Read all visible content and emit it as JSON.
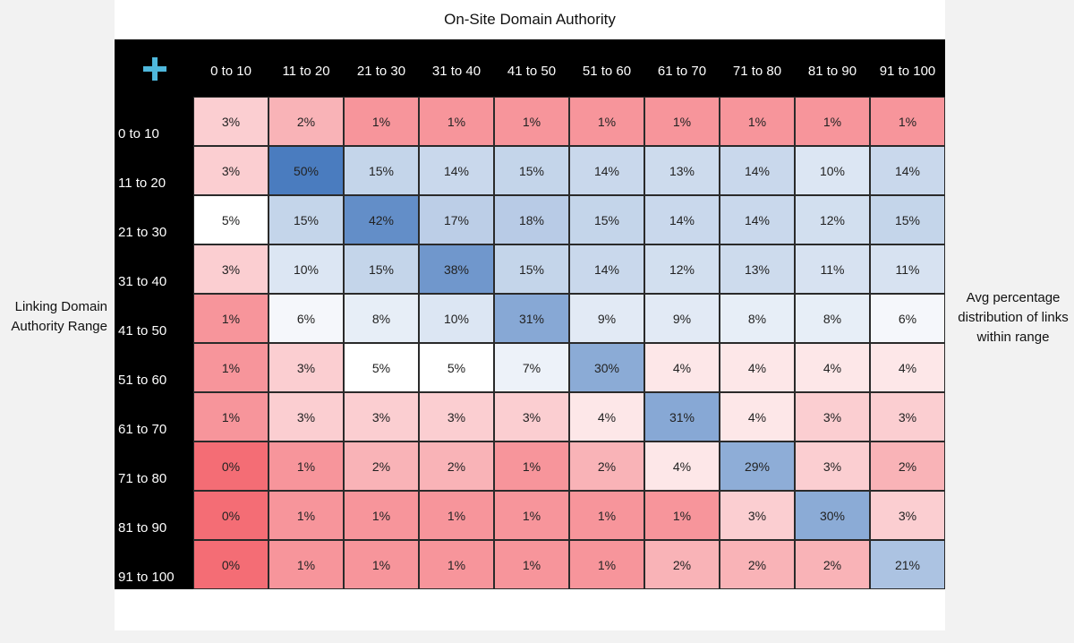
{
  "page": {
    "top_title": "On-Site Domain Authority",
    "y_title_line1": "Linking Domain",
    "y_title_line2": "Authority Range",
    "note_line1": "Avg percentage",
    "note_line2": "distribution of links",
    "note_line3": "within range"
  },
  "chart_data": {
    "type": "heatmap",
    "title": "On-Site Domain Authority",
    "xlabel": "On-Site Domain Authority",
    "ylabel": "Linking Domain Authority Range",
    "annotation": "Avg percentage distribution of links within range",
    "x_categories": [
      "0 to 10",
      "11 to 20",
      "21 to 30",
      "31 to 40",
      "41 to 50",
      "51 to 60",
      "61 to 70",
      "71 to 80",
      "81 to 90",
      "91 to 100"
    ],
    "y_categories": [
      "0 to 10",
      "11 to 20",
      "21 to 30",
      "31 to 40",
      "41 to 50",
      "51 to 60",
      "61 to 70",
      "71 to 80",
      "81 to 90",
      "91 to 100"
    ],
    "values": [
      [
        3,
        2,
        1,
        1,
        1,
        1,
        1,
        1,
        1,
        1
      ],
      [
        3,
        50,
        15,
        14,
        15,
        14,
        13,
        14,
        10,
        14
      ],
      [
        5,
        15,
        42,
        17,
        18,
        15,
        14,
        14,
        12,
        15
      ],
      [
        3,
        10,
        15,
        38,
        15,
        14,
        12,
        13,
        11,
        11
      ],
      [
        1,
        6,
        8,
        10,
        31,
        9,
        9,
        8,
        8,
        6
      ],
      [
        1,
        3,
        5,
        5,
        7,
        30,
        4,
        4,
        4,
        4
      ],
      [
        1,
        3,
        3,
        3,
        3,
        4,
        31,
        4,
        3,
        3
      ],
      [
        0,
        1,
        2,
        2,
        1,
        2,
        4,
        29,
        3,
        2
      ],
      [
        0,
        1,
        1,
        1,
        1,
        1,
        1,
        3,
        30,
        3
      ],
      [
        0,
        1,
        1,
        1,
        1,
        1,
        2,
        2,
        2,
        21
      ]
    ],
    "value_suffix": "%",
    "colors": {
      "low": "#f46d75",
      "mid": "#ffffff",
      "high": "#4a7cbf"
    }
  }
}
